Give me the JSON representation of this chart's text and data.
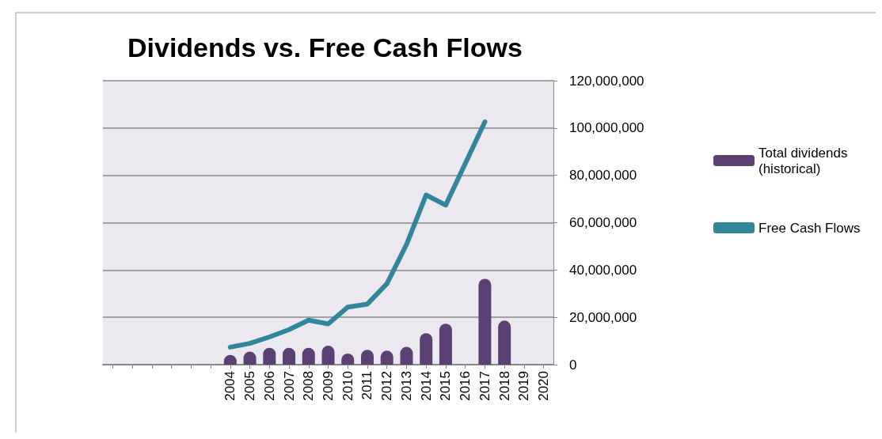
{
  "chart_data": {
    "type": "bar",
    "title": "Dividends vs. Free Cash Flows",
    "categories": [
      null,
      null,
      null,
      null,
      null,
      null,
      "2004",
      "2005",
      "2006",
      "2007",
      "2008",
      "2009",
      "2010",
      "2011",
      "2012",
      "2013",
      "2014",
      "2015",
      "2016",
      "2017",
      "2018",
      "2019",
      "2020"
    ],
    "series": [
      {
        "name": "Total dividends (historical)",
        "color": "#5b4173",
        "values": [
          null,
          null,
          null,
          null,
          null,
          null,
          4100000,
          5500000,
          7100000,
          7100000,
          7100000,
          8000000,
          4700000,
          6300000,
          5900000,
          7500000,
          13300000,
          17300000,
          null,
          36300000,
          18600000,
          null,
          null
        ]
      },
      {
        "name": "Free Cash Flows",
        "type": "line",
        "color": "#31869b",
        "values": [
          null,
          null,
          null,
          null,
          null,
          null,
          7400000,
          9000000,
          11700000,
          14800000,
          18800000,
          17200000,
          24300000,
          25600000,
          34200000,
          50800000,
          71700000,
          67400000,
          null,
          102600000,
          null,
          null,
          null
        ]
      }
    ],
    "ylim": [
      0,
      120000000
    ],
    "yticks": [
      0,
      {
        "value": 20000000,
        "label": "20,000,000"
      },
      {
        "value": 40000000,
        "label": "40,000,000"
      },
      {
        "value": 60000000,
        "label": "60,000,000"
      },
      {
        "value": 80000000,
        "label": "80,000,000"
      },
      {
        "value": 100000000,
        "label": "100,000,000"
      },
      {
        "value": 120000000,
        "label": "120,000,000"
      }
    ],
    "grid": "y",
    "legend": "right",
    "marker": "none",
    "line_style": "solid"
  }
}
